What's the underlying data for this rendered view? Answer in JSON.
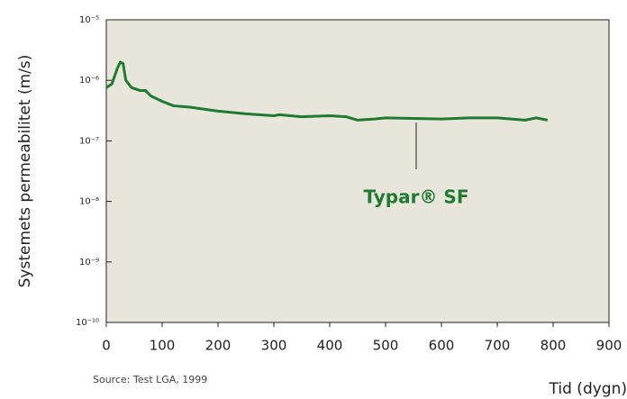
{
  "chart_data": {
    "type": "line",
    "ylabel": "Systemets permeabilitet (m/s)",
    "xlabel": "Tid (dygn)",
    "source": "Source: Test LGA, 1999",
    "annotation": "Typar® SF",
    "yscale": "log",
    "grid": false,
    "xlim": [
      0,
      900
    ],
    "xticks": [
      0,
      100,
      200,
      300,
      400,
      500,
      600,
      700,
      800,
      900
    ],
    "ylim": [
      1e-10,
      1e-05
    ],
    "yticks": [
      {
        "value": 1e-10,
        "label": "10⁻¹⁰"
      },
      {
        "value": 1e-09,
        "label": "10⁻⁹"
      },
      {
        "value": 1e-08,
        "label": "10⁻⁸"
      },
      {
        "value": 1e-07,
        "label": "10⁻⁷"
      },
      {
        "value": 1e-06,
        "label": "10⁻⁶"
      },
      {
        "value": 1e-05,
        "label": "10⁻⁵"
      }
    ],
    "series": [
      {
        "name": "Typar® SF",
        "color": "#1f7a32",
        "x": [
          0,
          10,
          20,
          25,
          30,
          35,
          45,
          60,
          70,
          80,
          100,
          120,
          150,
          200,
          250,
          300,
          310,
          350,
          370,
          400,
          430,
          450,
          480,
          500,
          600,
          650,
          700,
          750,
          770,
          790
        ],
        "values": [
          7.6e-07,
          8.7e-07,
          1.6e-06,
          2e-06,
          1.9e-06,
          1e-06,
          7.6e-07,
          6.8e-07,
          6.8e-07,
          5.5e-07,
          4.5e-07,
          3.8e-07,
          3.6e-07,
          3.1e-07,
          2.8e-07,
          2.6e-07,
          2.7e-07,
          2.5e-07,
          2.55e-07,
          2.6e-07,
          2.5e-07,
          2.2e-07,
          2.3e-07,
          2.4e-07,
          2.3e-07,
          2.4e-07,
          2.4e-07,
          2.2e-07,
          2.4e-07,
          2.2e-07
        ]
      }
    ]
  }
}
